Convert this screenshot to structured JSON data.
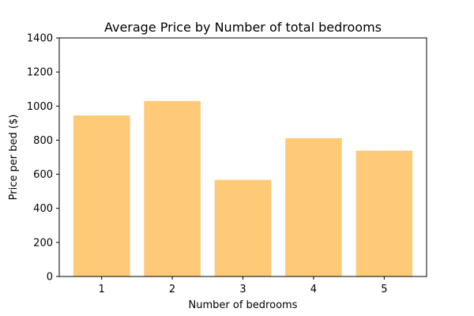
{
  "chart_data": {
    "type": "bar",
    "title": "Average Price by Number of total bedrooms",
    "xlabel": "Number of bedrooms",
    "ylabel": "Price per bed ($)",
    "categories": [
      "1",
      "2",
      "3",
      "4",
      "5"
    ],
    "values": [
      945,
      1030,
      567,
      812,
      738
    ],
    "ylim": [
      0,
      1400
    ],
    "yticks": [
      "0",
      "200",
      "400",
      "600",
      "800",
      "1000",
      "1200",
      "1400"
    ],
    "bar_color": "#ffca78",
    "grid": false,
    "legend": "none"
  }
}
